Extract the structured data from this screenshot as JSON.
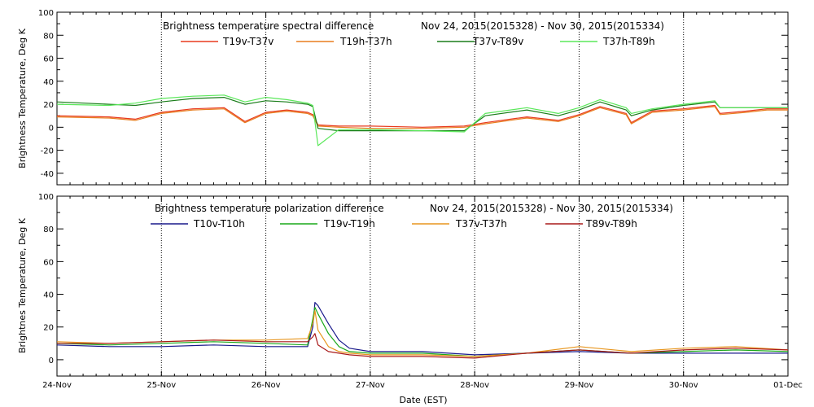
{
  "chart_data": [
    {
      "type": "line",
      "title": "Brightness temperature spectral difference",
      "date_range": "Nov 24, 2015(2015328) - Nov 30, 2015(2015334)",
      "ylabel": "Brightness Temperature, Deg K",
      "xlabel": "",
      "ylim": [
        -50,
        100
      ],
      "xlim": [
        0,
        7
      ],
      "yticks": [
        "-40",
        "-20",
        "0",
        "20",
        "40",
        "60",
        "80",
        "100"
      ],
      "ytick_values": [
        -40,
        -20,
        0,
        20,
        40,
        60,
        80,
        100
      ],
      "grid": "vertical dotted at day boundaries",
      "legend_placement": "top",
      "series": [
        {
          "name": "T19v-T37v",
          "color": "#e83a1e",
          "x": [
            0,
            0.5,
            0.75,
            1.0,
            1.3,
            1.6,
            1.8,
            2.0,
            2.2,
            2.4,
            2.45,
            2.5,
            2.7,
            3.0,
            3.5,
            3.9,
            4.1,
            4.5,
            4.8,
            5.0,
            5.2,
            5.45,
            5.5,
            5.7,
            6.0,
            6.3,
            6.35,
            6.6,
            6.8,
            7.0
          ],
          "y": [
            10,
            9,
            7,
            13,
            16,
            17,
            5,
            13,
            15,
            13,
            11,
            2,
            1,
            1,
            0,
            1,
            4,
            9,
            6,
            11,
            18,
            12,
            4,
            14,
            16,
            19,
            12,
            14,
            16,
            16
          ]
        },
        {
          "name": "T19h-T37h",
          "color": "#e87d1e",
          "x": [
            0,
            0.5,
            0.75,
            1.0,
            1.3,
            1.6,
            1.8,
            2.0,
            2.2,
            2.4,
            2.45,
            2.5,
            2.7,
            3.0,
            3.5,
            3.9,
            4.1,
            4.5,
            4.8,
            5.0,
            5.2,
            5.45,
            5.5,
            5.7,
            6.0,
            6.3,
            6.35,
            6.6,
            6.8,
            7.0
          ],
          "y": [
            9,
            8,
            6,
            12,
            15,
            16,
            4,
            12,
            14,
            12,
            10,
            1,
            0,
            -1,
            -1,
            0,
            3,
            8,
            5,
            10,
            17,
            11,
            3,
            13,
            15,
            18,
            11,
            13,
            15,
            15
          ]
        },
        {
          "name": "T37v-T89v",
          "color": "#1a7d1a",
          "x": [
            0,
            0.5,
            0.75,
            1.0,
            1.3,
            1.6,
            1.8,
            2.0,
            2.2,
            2.4,
            2.45,
            2.5,
            2.7,
            3.0,
            3.5,
            3.9,
            4.1,
            4.5,
            4.8,
            5.0,
            5.2,
            5.45,
            5.5,
            5.7,
            6.0,
            6.3,
            6.35,
            6.6,
            6.8,
            7.0
          ],
          "y": [
            22,
            20,
            19,
            22,
            25,
            26,
            20,
            23,
            22,
            20,
            18,
            -1,
            -3,
            -3,
            -3,
            -3,
            10,
            15,
            10,
            15,
            22,
            15,
            10,
            15,
            19,
            22,
            17,
            17,
            17,
            17
          ]
        },
        {
          "name": "T37h-T89h",
          "color": "#5ae85a",
          "x": [
            0,
            0.5,
            0.75,
            1.0,
            1.3,
            1.6,
            1.8,
            2.0,
            2.2,
            2.4,
            2.45,
            2.5,
            2.7,
            3.0,
            3.5,
            3.9,
            4.1,
            4.5,
            4.8,
            5.0,
            5.2,
            5.45,
            5.5,
            5.7,
            6.0,
            6.3,
            6.35,
            6.6,
            6.8,
            7.0
          ],
          "y": [
            20,
            19,
            21,
            25,
            27,
            28,
            22,
            26,
            24,
            21,
            19,
            -16,
            -2,
            -2,
            -3,
            -4,
            12,
            17,
            12,
            17,
            24,
            17,
            12,
            16,
            20,
            23,
            17,
            17,
            17,
            17
          ]
        }
      ]
    },
    {
      "type": "line",
      "title": "Brightness temperature polarization difference",
      "date_range": "Nov 24, 2015(2015328) - Nov 30, 2015(2015334)",
      "ylabel": "Brightnes Temperature, Deg K",
      "xlabel": "Date (EST)",
      "ylim": [
        -10,
        100
      ],
      "xlim": [
        0,
        7
      ],
      "yticks": [
        "0",
        "20",
        "40",
        "60",
        "80",
        "100"
      ],
      "ytick_values": [
        0,
        20,
        40,
        60,
        80,
        100
      ],
      "xticks": [
        "24-Nov",
        "25-Nov",
        "26-Nov",
        "27-Nov",
        "28-Nov",
        "29-Nov",
        "30-Nov",
        "01-Dec"
      ],
      "xtick_values": [
        0,
        1,
        2,
        3,
        4,
        5,
        6,
        7
      ],
      "grid": "vertical dotted at day boundaries",
      "legend_placement": "top",
      "series": [
        {
          "name": "T10v-T10h",
          "color": "#1a1a8c",
          "x": [
            0,
            0.5,
            1.0,
            1.5,
            2.0,
            2.4,
            2.45,
            2.47,
            2.5,
            2.6,
            2.7,
            2.8,
            3.0,
            3.5,
            4.0,
            4.5,
            5.0,
            5.5,
            6.0,
            6.5,
            7.0
          ],
          "y": [
            9,
            8,
            8,
            9,
            8,
            8,
            20,
            35,
            33,
            22,
            12,
            7,
            5,
            5,
            3,
            4,
            5,
            4,
            4,
            4,
            4
          ]
        },
        {
          "name": "T19v-T19h",
          "color": "#1aa81a",
          "x": [
            0,
            0.5,
            1.0,
            1.5,
            2.0,
            2.4,
            2.45,
            2.47,
            2.5,
            2.6,
            2.7,
            2.8,
            3.0,
            3.5,
            4.0,
            4.5,
            5.0,
            5.5,
            6.0,
            6.5,
            7.0
          ],
          "y": [
            10,
            9,
            10,
            11,
            10,
            9,
            25,
            32,
            28,
            16,
            8,
            5,
            4,
            4,
            2,
            4,
            6,
            4,
            5,
            6,
            5
          ]
        },
        {
          "name": "T37v-T37h",
          "color": "#e8961e",
          "x": [
            0,
            0.5,
            1.0,
            1.5,
            2.0,
            2.4,
            2.45,
            2.47,
            2.5,
            2.6,
            2.7,
            2.8,
            3.0,
            3.5,
            4.0,
            4.5,
            5.0,
            5.5,
            6.0,
            6.5,
            7.0
          ],
          "y": [
            11,
            10,
            11,
            12,
            12,
            13,
            22,
            30,
            18,
            8,
            5,
            4,
            3,
            3,
            2,
            4,
            8,
            5,
            7,
            8,
            6
          ]
        },
        {
          "name": "T89v-T89h",
          "color": "#a81a1a",
          "x": [
            0,
            0.5,
            1.0,
            1.5,
            2.0,
            2.4,
            2.45,
            2.47,
            2.5,
            2.6,
            2.7,
            2.8,
            3.0,
            3.5,
            4.0,
            4.5,
            5.0,
            5.5,
            6.0,
            6.5,
            7.0
          ],
          "y": [
            10,
            10,
            11,
            12,
            11,
            11,
            14,
            16,
            9,
            5,
            4,
            3,
            2,
            2,
            1,
            4,
            6,
            4,
            6,
            7,
            6
          ]
        }
      ]
    }
  ]
}
